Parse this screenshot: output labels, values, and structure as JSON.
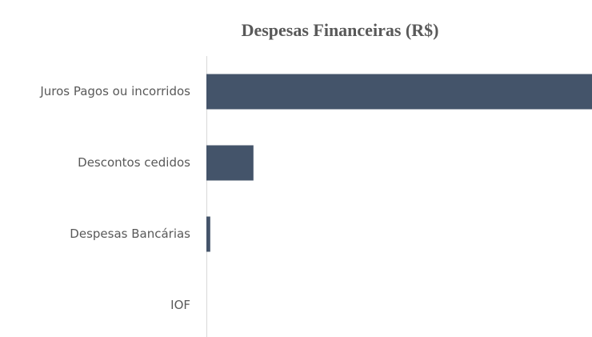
{
  "chart_data": {
    "type": "bar",
    "orientation": "horizontal",
    "title": "Despesas Financeiras (R$)",
    "categories": [
      "Juros Pagos ou incorridos",
      "Descontos cedidos",
      "Despesas Bancárias",
      "IOF"
    ],
    "values": [
      100,
      12.2,
      1,
      0
    ],
    "color": "#44546a",
    "xlim": [
      0,
      100
    ],
    "grid": false
  }
}
